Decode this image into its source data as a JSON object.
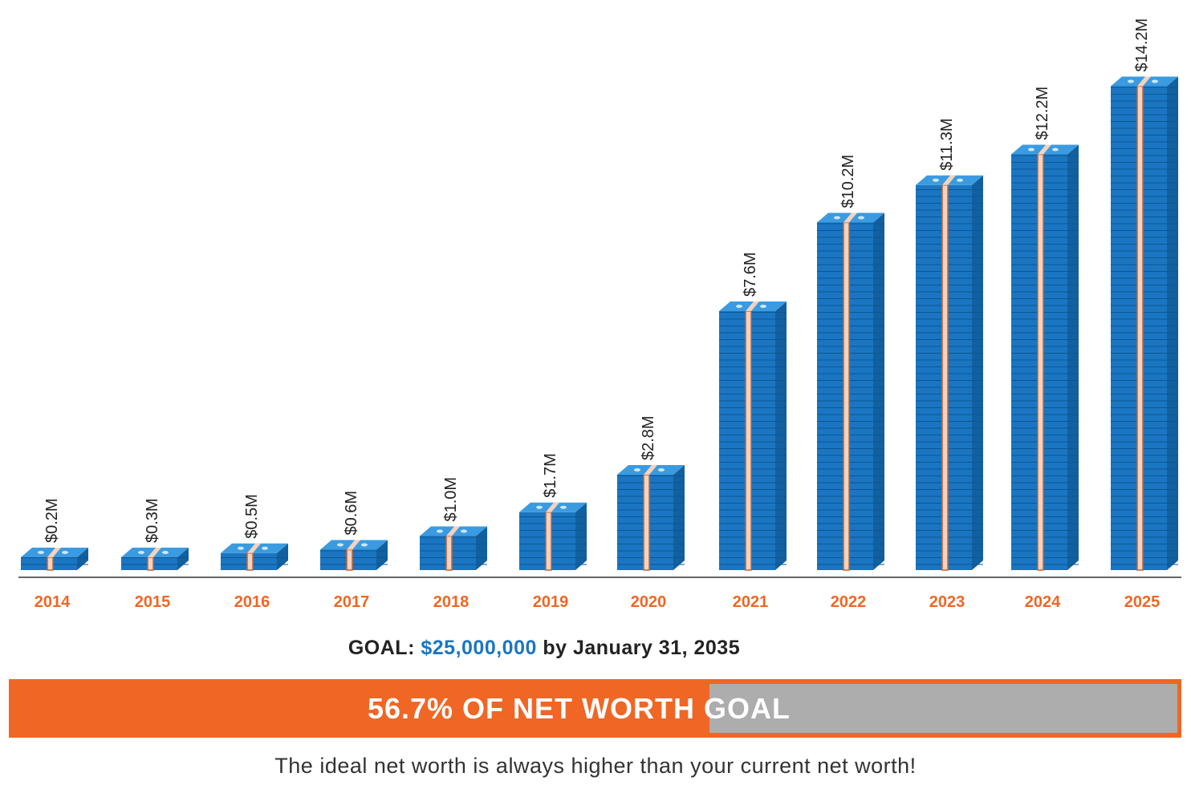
{
  "chart_data": {
    "type": "bar",
    "categories": [
      "2014",
      "2015",
      "2016",
      "2017",
      "2018",
      "2019",
      "2020",
      "2021",
      "2022",
      "2023",
      "2024",
      "2025"
    ],
    "values": [
      0.2,
      0.3,
      0.5,
      0.6,
      1.0,
      1.7,
      2.8,
      7.6,
      10.2,
      11.3,
      12.2,
      14.2
    ],
    "value_labels": [
      "$0.2M",
      "$0.3M",
      "$0.5M",
      "$0.6M",
      "$1.0M",
      "$1.7M",
      "$2.8M",
      "$7.6M",
      "$10.2M",
      "$11.3M",
      "$12.2M",
      "$14.2M"
    ],
    "unit": "$M",
    "title": "",
    "xlabel": "",
    "ylabel": "",
    "ylim": [
      0,
      14.5
    ],
    "grid": false
  },
  "goal": {
    "prefix": "GOAL:",
    "amount": "$25,000,000",
    "suffix": "by January 31, 2035"
  },
  "progress": {
    "percent": 56.7,
    "label": "56.7% OF NET WORTH GOAL"
  },
  "note": "The ideal net worth is always higher than your current net worth!",
  "colors": {
    "accent": "#f06625",
    "money": "#1a76c2",
    "remaining": "#adadad"
  }
}
